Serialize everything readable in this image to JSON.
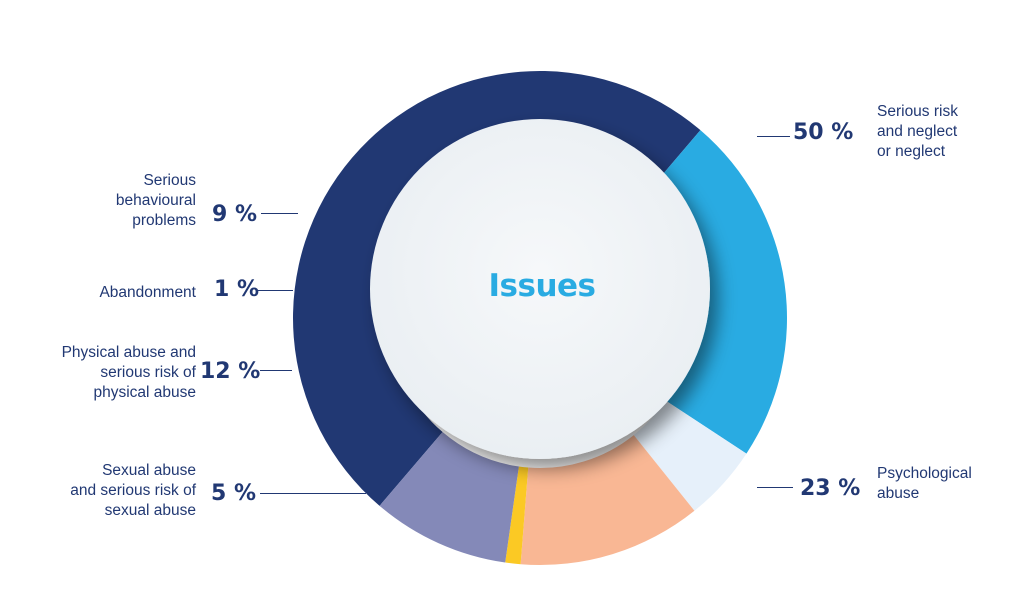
{
  "center_title": "Issues",
  "chart_data": {
    "type": "pie",
    "style": "donut",
    "title": "Issues",
    "categories": [
      "Serious risk\nand neglect\nor neglect",
      "Psychological\nabuse",
      "Sexual abuse\nand serious risk of\nsexual abuse",
      "Physical abuse and\nserious risk of\nphysical abuse",
      "Abandonment",
      "Serious\nbehavioural\nproblems"
    ],
    "values": [
      50,
      23,
      5,
      12,
      1,
      9
    ],
    "value_labels": [
      "50 %",
      "23 %",
      "5 %",
      "12 %",
      "1 %",
      "9 %"
    ],
    "colors": [
      "#213873",
      "#29abe2",
      "#e6f0fa",
      "#f9b794",
      "#fbc924",
      "#8489b8"
    ],
    "legend": "none"
  }
}
